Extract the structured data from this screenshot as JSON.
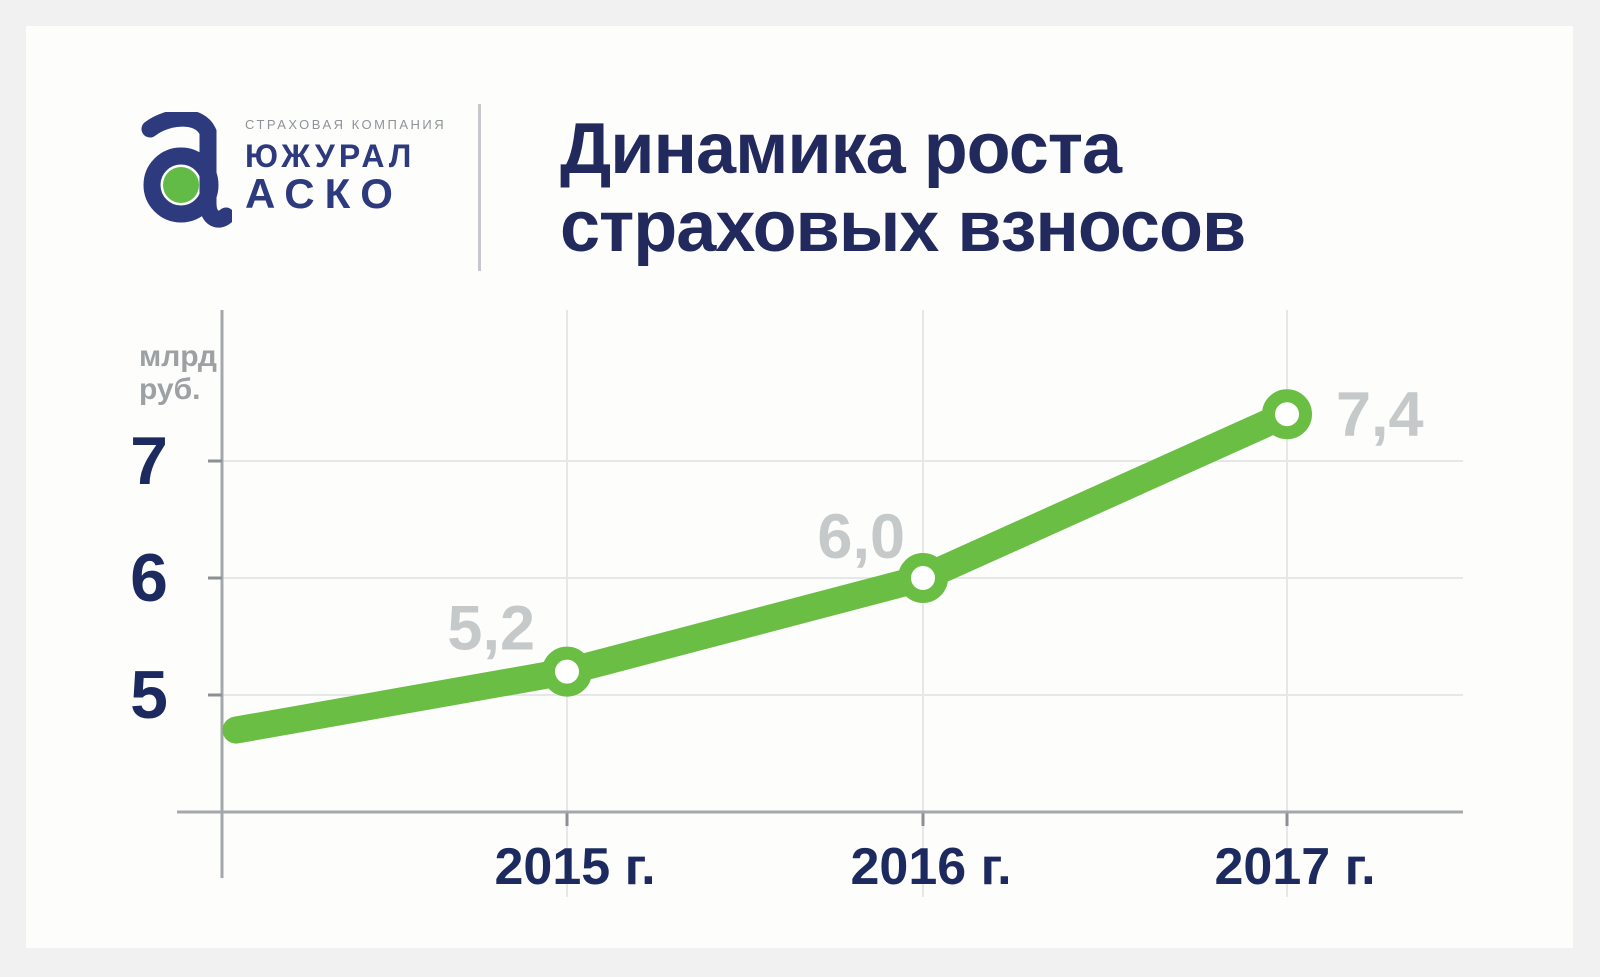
{
  "brand": {
    "tagline": "СТРАХОВАЯ КОМПАНИЯ",
    "name_line1": "ЮЖУРАЛ",
    "name_line2": "АСКО",
    "navy_color": "#2d3a7d",
    "green_color": "#62bb46",
    "tagline_color": "#8e9397"
  },
  "title": {
    "line1": "Динамика роста",
    "line2": "страховых взносов",
    "color": "#222a5d"
  },
  "chart_data": {
    "type": "line",
    "title": "Динамика роста страховых взносов",
    "unit_label": "млрд руб.",
    "categories": [
      "2015 г.",
      "2016 г.",
      "2017 г."
    ],
    "values": [
      5.2,
      6.0,
      7.4
    ],
    "value_labels": [
      "5,2",
      "6,0",
      "7,4"
    ],
    "lead_in_value": 4.7,
    "y_ticks": [
      7,
      6,
      5
    ],
    "ylim": [
      4,
      7.9
    ],
    "grid": true,
    "legend": "none",
    "line_color": "#6abe44",
    "marker_fill": "#ffffff",
    "value_label_color": "#c6c9ca",
    "tick_label_color": "#1d2a5f",
    "unit_label_color": "#9ca1a4",
    "axis_color": "#a5a8aa",
    "grid_color": "#e5e7e8",
    "dark_tick_color": "#8c9093"
  }
}
